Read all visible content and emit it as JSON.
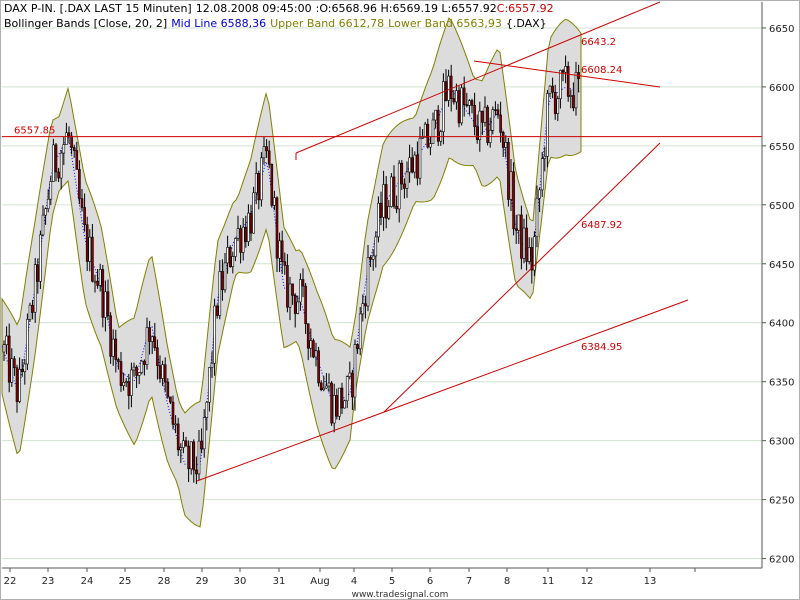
{
  "header": {
    "line1": {
      "instrument": "DAX P-IN. [.DAX LAST 15 Minuten]",
      "datetime": "12.08.2008 09:45:00",
      "ohl": ":O:6568.96 H:6569.19 L:6557.92",
      "close": "C:6557.92"
    },
    "line2": {
      "indicator": "Bollinger Bands [Close, 20, 2]",
      "mid": "Mid Line 6588,36",
      "upper": "Upper Band 6612,78",
      "lower": "Lower Band 6563,93",
      "symbol": "{.DAX}"
    }
  },
  "footer": {
    "watermark": "www.tradesignal.com"
  },
  "colors": {
    "candle_down": "#8b0000",
    "candle_up": "#ffffff",
    "band": "#808000",
    "band_fill": "#dcdcdc",
    "mid": "#0000ff",
    "trend": "#cc0000",
    "close": "#cc0000",
    "grid": "#cfe3cf"
  },
  "chart_data": {
    "type": "candlestick",
    "title": "",
    "y_axis_side": "right",
    "ylim": [
      6192,
      6672
    ],
    "yticks": [
      6200,
      6250,
      6300,
      6350,
      6400,
      6450,
      6500,
      6550,
      6600,
      6650
    ],
    "x_labels": [
      "22",
      "23",
      "24",
      "25",
      "28",
      "29",
      "30",
      "31",
      "Aug",
      "4",
      "5",
      "6",
      "7",
      "8",
      "11",
      "12",
      "13"
    ],
    "grid": true,
    "bollinger_anchor_prices": [
      6380,
      6340,
      6430,
      6530,
      6560,
      6470,
      6430,
      6360,
      6350,
      6400,
      6330,
      6280,
      6280,
      6420,
      6470,
      6490,
      6540,
      6430,
      6420,
      6370,
      6330,
      6340,
      6440,
      6500,
      6520,
      6540,
      6560,
      6600,
      6580,
      6560,
      6580,
      6480,
      6450,
      6590,
      6600,
      6595
    ],
    "horizontal_line": {
      "value": 6557.85,
      "label": "6557.85"
    },
    "trendlines": [
      {
        "name": "upper channel",
        "label": "6643.2"
      },
      {
        "name": "falling resistance",
        "label": "6608.24"
      },
      {
        "name": "steep support",
        "label": "6487.92"
      },
      {
        "name": "long support",
        "label": "6384.95"
      }
    ],
    "last_close": 6557.92
  }
}
